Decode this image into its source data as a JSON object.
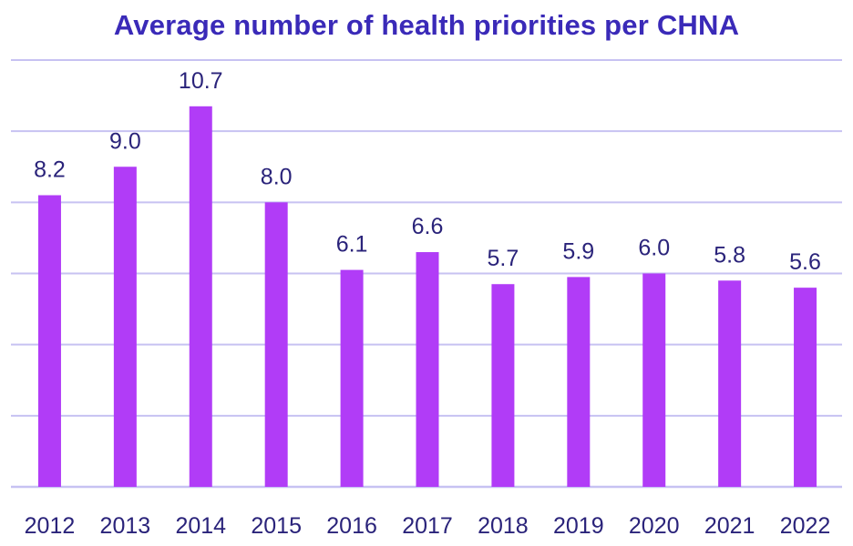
{
  "chart_data": {
    "type": "bar",
    "title": "Average number of health priorities per CHNA",
    "categories": [
      "2012",
      "2013",
      "2014",
      "2015",
      "2016",
      "2017",
      "2018",
      "2019",
      "2020",
      "2021",
      "2022"
    ],
    "values": [
      8.2,
      9.0,
      10.7,
      8.0,
      6.1,
      6.6,
      5.7,
      5.9,
      6.0,
      5.8,
      5.6
    ],
    "value_labels": [
      "8.2",
      "9.0",
      "10.7",
      "8.0",
      "6.1",
      "6.6",
      "5.7",
      "5.9",
      "6.0",
      "5.8",
      "5.6"
    ],
    "xlabel": "",
    "ylabel": "",
    "ylim": [
      0,
      12
    ],
    "ytick_step": 2,
    "grid": true,
    "y_tick_labels_shown": false,
    "bar_color": "#b13cf7",
    "label_color": "#2a237a",
    "title_color": "#3a2ab8",
    "grid_color": "#c7c2f2"
  }
}
